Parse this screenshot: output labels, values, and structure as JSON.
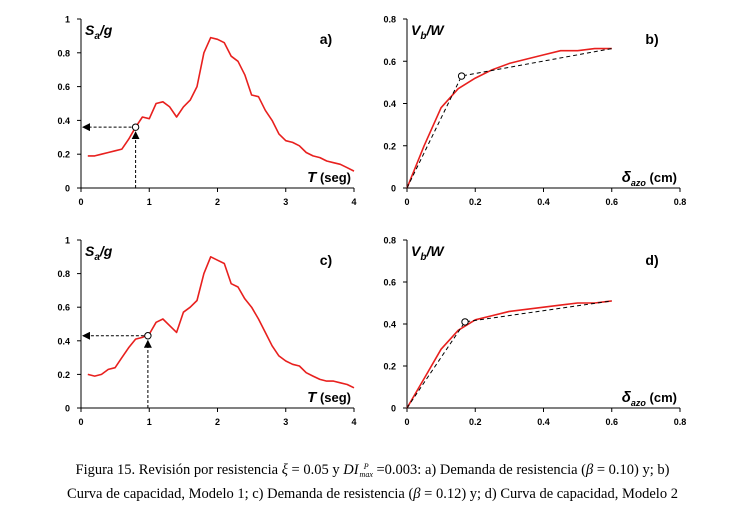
{
  "caption": {
    "line1_a": "Figura 15. Revisión por resistencia ",
    "xi_symbol": "ξ",
    "line1_b": " = 0.05 y ",
    "di_symbol": "DI",
    "di_sup": "P",
    "di_sub": "max",
    "line1_c": " =0.003: a) Demanda de resistencia (",
    "beta_symbol": "β",
    "line1_d": " = 0.10) y; b)",
    "line2_a": "Curva de capacidad, Modelo 1; c) Demanda de resistencia (",
    "line2_b": " = 0.12) y; d) Curva de capacidad, Modelo 2"
  },
  "chart_data": [
    {
      "id": "a",
      "type": "line",
      "panel_label": "a)",
      "ylabel_main": "S",
      "ylabel_sub": "a",
      "ylabel_tail": "/g",
      "xlabel_main": "T",
      "xlabel_unit": "(seg)",
      "xlim": [
        0,
        4
      ],
      "ylim": [
        0,
        1
      ],
      "xticks": [
        "0",
        "1",
        "2",
        "3",
        "4"
      ],
      "yticks": [
        "0",
        "0.2",
        "0.4",
        "0.6",
        "0.8",
        "1"
      ],
      "series": [
        {
          "name": "espectro",
          "color": "#e8201e",
          "x": [
            0.1,
            0.2,
            0.3,
            0.4,
            0.5,
            0.6,
            0.7,
            0.8,
            0.9,
            1.0,
            1.1,
            1.2,
            1.3,
            1.4,
            1.5,
            1.6,
            1.7,
            1.8,
            1.9,
            2.0,
            2.1,
            2.2,
            2.3,
            2.4,
            2.5,
            2.6,
            2.7,
            2.8,
            2.9,
            3.0,
            3.1,
            3.2,
            3.3,
            3.4,
            3.5,
            3.6,
            3.7,
            3.8,
            3.9,
            4.0
          ],
          "y": [
            0.19,
            0.19,
            0.2,
            0.21,
            0.22,
            0.23,
            0.29,
            0.36,
            0.42,
            0.41,
            0.5,
            0.51,
            0.48,
            0.42,
            0.48,
            0.52,
            0.6,
            0.8,
            0.89,
            0.88,
            0.86,
            0.78,
            0.75,
            0.67,
            0.55,
            0.54,
            0.46,
            0.4,
            0.32,
            0.28,
            0.27,
            0.25,
            0.21,
            0.19,
            0.18,
            0.16,
            0.15,
            0.14,
            0.12,
            0.1
          ]
        }
      ],
      "marker": {
        "x": 0.8,
        "y": 0.36
      },
      "arrow": "toward-y-axis"
    },
    {
      "id": "b",
      "type": "line",
      "panel_label": "b)",
      "ylabel_main": "V",
      "ylabel_sub": "b",
      "ylabel_tail": "/W",
      "xlabel_main": "δ",
      "xlabel_sub": "azo",
      "xlabel_unit": "(cm)",
      "xlim": [
        0,
        0.8
      ],
      "ylim": [
        0,
        0.8
      ],
      "xticks": [
        "0",
        "0.2",
        "0.4",
        "0.6",
        "0.8"
      ],
      "yticks": [
        "0",
        "0.2",
        "0.4",
        "0.6",
        "0.8"
      ],
      "series": [
        {
          "name": "capacidad",
          "color": "#e8201e",
          "x": [
            0,
            0.05,
            0.1,
            0.15,
            0.2,
            0.25,
            0.3,
            0.35,
            0.4,
            0.45,
            0.5,
            0.55,
            0.6
          ],
          "y": [
            0,
            0.2,
            0.38,
            0.47,
            0.52,
            0.56,
            0.59,
            0.61,
            0.63,
            0.65,
            0.65,
            0.66,
            0.66
          ]
        },
        {
          "name": "bilineal",
          "color": "#000000",
          "dashed": true,
          "x": [
            0,
            0.16,
            0.6
          ],
          "y": [
            0,
            0.53,
            0.66
          ]
        }
      ],
      "marker": {
        "x": 0.16,
        "y": 0.53
      }
    },
    {
      "id": "c",
      "type": "line",
      "panel_label": "c)",
      "ylabel_main": "S",
      "ylabel_sub": "a",
      "ylabel_tail": "/g",
      "xlabel_main": "T",
      "xlabel_unit": "(seg)",
      "xlim": [
        0,
        4
      ],
      "ylim": [
        0,
        1
      ],
      "xticks": [
        "0",
        "1",
        "2",
        "3",
        "4"
      ],
      "yticks": [
        "0",
        "0.2",
        "0.4",
        "0.6",
        "0.8",
        "1"
      ],
      "series": [
        {
          "name": "espectro",
          "color": "#e8201e",
          "x": [
            0.1,
            0.2,
            0.3,
            0.4,
            0.5,
            0.6,
            0.7,
            0.8,
            0.9,
            1.0,
            1.1,
            1.2,
            1.3,
            1.4,
            1.5,
            1.6,
            1.7,
            1.8,
            1.9,
            2.0,
            2.1,
            2.2,
            2.3,
            2.4,
            2.5,
            2.6,
            2.7,
            2.8,
            2.9,
            3.0,
            3.1,
            3.2,
            3.3,
            3.4,
            3.5,
            3.6,
            3.7,
            3.8,
            3.9,
            4.0
          ],
          "y": [
            0.2,
            0.19,
            0.2,
            0.23,
            0.24,
            0.3,
            0.36,
            0.41,
            0.42,
            0.44,
            0.51,
            0.53,
            0.49,
            0.45,
            0.57,
            0.6,
            0.64,
            0.8,
            0.9,
            0.88,
            0.86,
            0.74,
            0.72,
            0.65,
            0.6,
            0.53,
            0.45,
            0.37,
            0.31,
            0.28,
            0.26,
            0.25,
            0.21,
            0.19,
            0.17,
            0.16,
            0.16,
            0.15,
            0.14,
            0.12
          ]
        }
      ],
      "marker": {
        "x": 0.98,
        "y": 0.43
      },
      "arrow": "toward-y-axis"
    },
    {
      "id": "d",
      "type": "line",
      "panel_label": "d)",
      "ylabel_main": "V",
      "ylabel_sub": "b",
      "ylabel_tail": "/W",
      "xlabel_main": "δ",
      "xlabel_sub": "azo",
      "xlabel_unit": "(cm)",
      "xlim": [
        0,
        0.8
      ],
      "ylim": [
        0,
        0.8
      ],
      "xticks": [
        "0",
        "0.2",
        "0.4",
        "0.6",
        "0.8"
      ],
      "yticks": [
        "0",
        "0.2",
        "0.4",
        "0.6",
        "0.8"
      ],
      "series": [
        {
          "name": "capacidad",
          "color": "#e8201e",
          "x": [
            0,
            0.05,
            0.1,
            0.15,
            0.2,
            0.25,
            0.3,
            0.35,
            0.4,
            0.45,
            0.5,
            0.55,
            0.6
          ],
          "y": [
            0,
            0.14,
            0.28,
            0.37,
            0.42,
            0.44,
            0.46,
            0.47,
            0.48,
            0.49,
            0.5,
            0.5,
            0.51
          ]
        },
        {
          "name": "bilineal",
          "color": "#000000",
          "dashed": true,
          "x": [
            0,
            0.17,
            0.6
          ],
          "y": [
            0,
            0.41,
            0.51
          ]
        }
      ],
      "marker": {
        "x": 0.17,
        "y": 0.41
      }
    }
  ]
}
